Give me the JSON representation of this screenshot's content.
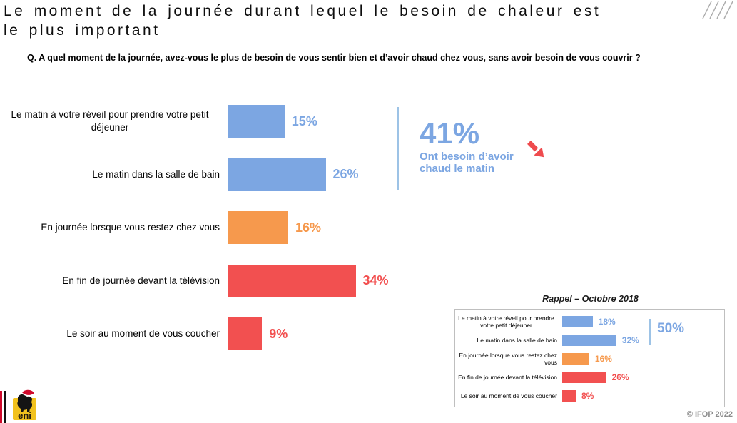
{
  "header": {
    "title_line1": "Le moment de la journée durant lequel le besoin de chaleur est",
    "title_line2": "le plus important",
    "question": "Q. A quel moment de la journée, avez-vous le plus de besoin de vous sentir bien et d’avoir chaud chez vous, sans avoir besoin de vous couvrir ?"
  },
  "chart_data": [
    {
      "type": "bar",
      "orientation": "horizontal",
      "title": "",
      "unit": "%",
      "categories": [
        "Le matin à votre réveil pour prendre votre petit déjeuner",
        "Le matin dans la salle de bain",
        "En journée lorsque vous restez chez vous",
        "En fin de journée devant la télévision",
        "Le soir au moment de vous coucher"
      ],
      "values": [
        15,
        26,
        16,
        34,
        9
      ],
      "bar_colors": [
        "#7CA6E2",
        "#7CA6E2",
        "#F6994D",
        "#F25050",
        "#F25050"
      ],
      "annotation": {
        "value": "41%",
        "label": "Ont besoin d’avoir chaud le matin",
        "color": "#7CA6E2"
      }
    },
    {
      "type": "bar",
      "orientation": "horizontal",
      "title": "Rappel – Octobre 2018",
      "unit": "%",
      "categories": [
        "Le matin à votre réveil pour prendre votre petit déjeuner",
        "Le matin dans la salle de bain",
        "En journée lorsque vous restez chez vous",
        "En fin de journée devant la télévision",
        "Le soir au moment de vous coucher"
      ],
      "values": [
        18,
        32,
        16,
        26,
        8
      ],
      "bar_colors": [
        "#7CA6E2",
        "#7CA6E2",
        "#F6994D",
        "#F25050",
        "#F25050"
      ],
      "annotation": {
        "value": "50%",
        "color": "#7CA6E2"
      }
    }
  ],
  "colors": {
    "accent_line": "#9DC3E6",
    "arrow": "#EF4B4E",
    "slashes": "#ACACAC",
    "box_border": "#BFBFBF",
    "copyright": "#8C8C8C",
    "logo_yellow": "#F2C21E",
    "logo_red": "#CF0A2C"
  },
  "footer": {
    "copyright": "© IFOP 2022",
    "logo_text": "eni"
  }
}
